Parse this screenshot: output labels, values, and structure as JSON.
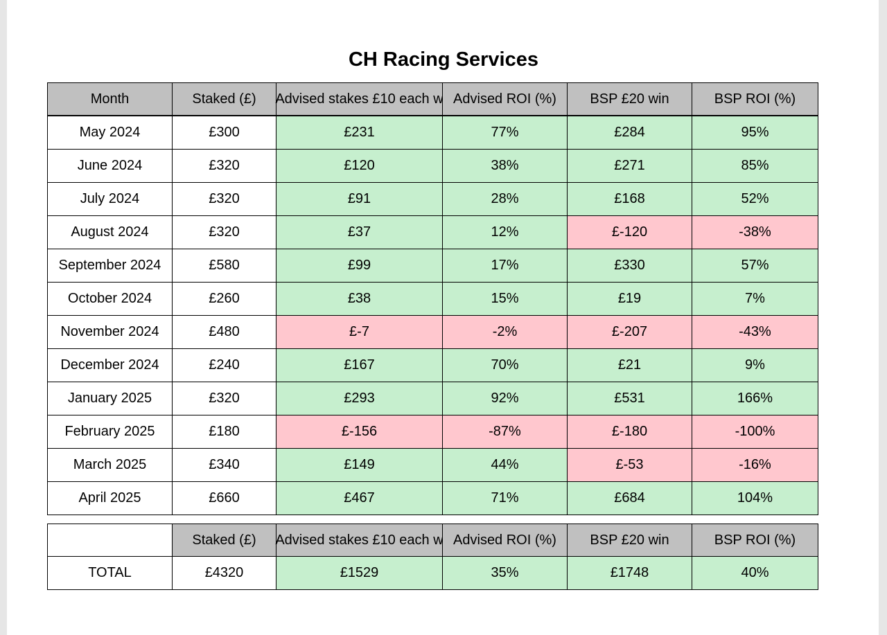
{
  "title": "CH Racing Services",
  "colors": {
    "header": "#c0c0c0",
    "positive": "#c6efce",
    "negative": "#ffc7ce",
    "plain": "#ffffff"
  },
  "table": {
    "header": [
      "Month",
      "Staked (£)",
      "Advised stakes £10 each w",
      "Advised ROI (%)",
      "BSP £20 win",
      "BSP ROI (%)"
    ],
    "rows": [
      [
        "May 2024",
        "£300",
        "£231",
        "77%",
        "£284",
        "95%"
      ],
      [
        "June 2024",
        "£320",
        "£120",
        "38%",
        "£271",
        "85%"
      ],
      [
        "July 2024",
        "£320",
        "£91",
        "28%",
        "£168",
        "52%"
      ],
      [
        "August 2024",
        "£320",
        "£37",
        "12%",
        "£-120",
        "-38%"
      ],
      [
        "September 2024",
        "£580",
        "£99",
        "17%",
        "£330",
        "57%"
      ],
      [
        "October 2024",
        "£260",
        "£38",
        "15%",
        "£19",
        "7%"
      ],
      [
        "November 2024",
        "£480",
        "£-7",
        "-2%",
        "£-207",
        "-43%"
      ],
      [
        "December 2024",
        "£240",
        "£167",
        "70%",
        "£21",
        "9%"
      ],
      [
        "January 2025",
        "£320",
        "£293",
        "92%",
        "£531",
        "166%"
      ],
      [
        "February 2025",
        "£180",
        "£-156",
        "-87%",
        "£-180",
        "-100%"
      ],
      [
        "March 2025",
        "£340",
        "£149",
        "44%",
        "£-53",
        "-16%"
      ],
      [
        "April 2025",
        "£660",
        "£467",
        "71%",
        "£684",
        "104%"
      ]
    ]
  },
  "totals": {
    "header": [
      "Staked (£)",
      "Advised stakes £10 each w",
      "Advised ROI (%)",
      "BSP £20 win",
      "BSP ROI (%)"
    ],
    "row": [
      "TOTAL",
      "£4320",
      "£1529",
      "35%",
      "£1748",
      "40%"
    ]
  }
}
